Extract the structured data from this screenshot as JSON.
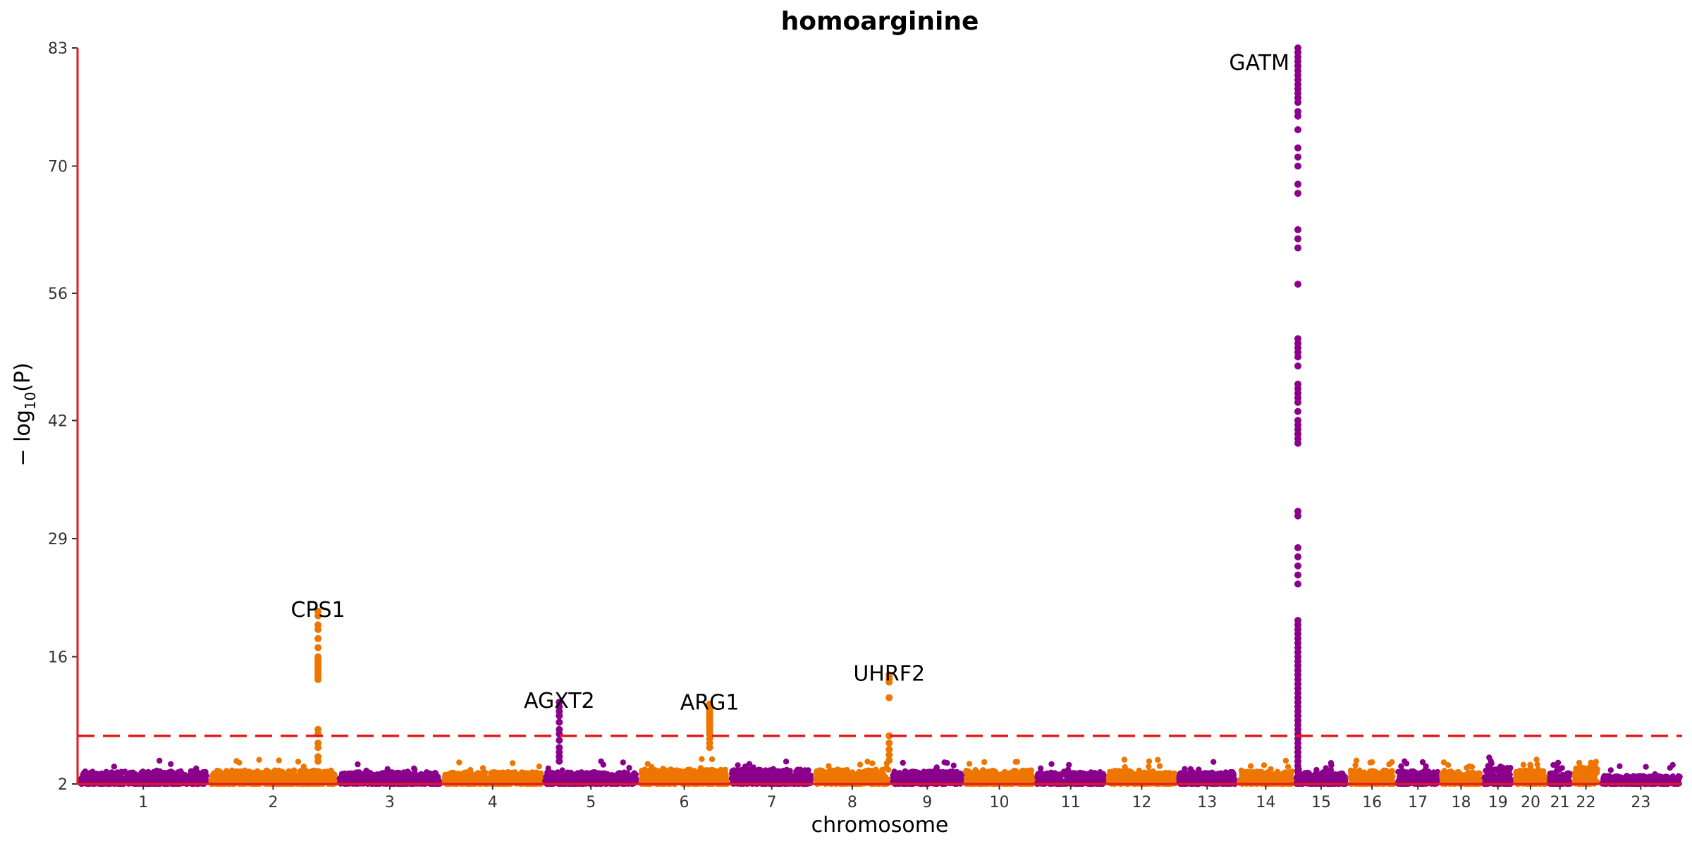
{
  "chart_data": {
    "type": "scatter",
    "subtype": "manhattan",
    "title": "homoarginine",
    "xlabel": "chromosome",
    "ylabel_prefix": "− log",
    "ylabel_sub": "10",
    "ylabel_suffix": "(P)",
    "ylim": [
      2,
      83
    ],
    "yticks": [
      "2",
      "16",
      "29",
      "42",
      "56",
      "70",
      "83"
    ],
    "ytick_values": [
      2,
      16,
      29,
      42,
      56,
      70,
      83
    ],
    "significance_threshold": 7.3,
    "colors": {
      "odd": "#8B008B",
      "even": "#EE7600",
      "axis": "#E31A1C",
      "threshold": "#E31A1C"
    },
    "chromosomes": [
      {
        "label": "1",
        "size": 248,
        "baseline": [
          2.0,
          3.4
        ]
      },
      {
        "label": "2",
        "size": 242,
        "baseline": [
          2.0,
          3.5
        ]
      },
      {
        "label": "3",
        "size": 198,
        "baseline": [
          2.0,
          3.3
        ]
      },
      {
        "label": "4",
        "size": 190,
        "baseline": [
          2.0,
          3.3
        ]
      },
      {
        "label": "5",
        "size": 181,
        "baseline": [
          2.0,
          3.3
        ]
      },
      {
        "label": "6",
        "size": 171,
        "baseline": [
          2.0,
          3.6
        ]
      },
      {
        "label": "7",
        "size": 159,
        "baseline": [
          2.0,
          3.6
        ]
      },
      {
        "label": "8",
        "size": 145,
        "baseline": [
          2.0,
          3.6
        ]
      },
      {
        "label": "9",
        "size": 138,
        "baseline": [
          2.0,
          3.4
        ]
      },
      {
        "label": "10",
        "size": 134,
        "baseline": [
          2.0,
          3.5
        ]
      },
      {
        "label": "11",
        "size": 135,
        "baseline": [
          2.0,
          3.3
        ]
      },
      {
        "label": "12",
        "size": 133,
        "baseline": [
          2.0,
          3.5
        ]
      },
      {
        "label": "13",
        "size": 114,
        "baseline": [
          2.0,
          3.3
        ]
      },
      {
        "label": "14",
        "size": 107,
        "baseline": [
          2.0,
          3.4
        ]
      },
      {
        "label": "15",
        "size": 102,
        "baseline": [
          2.0,
          3.3
        ]
      },
      {
        "label": "16",
        "size": 90,
        "baseline": [
          2.0,
          3.5
        ]
      },
      {
        "label": "17",
        "size": 83,
        "baseline": [
          2.0,
          3.4
        ]
      },
      {
        "label": "18",
        "size": 80,
        "baseline": [
          2.0,
          3.4
        ]
      },
      {
        "label": "19",
        "size": 59,
        "baseline": [
          2.0,
          3.8
        ]
      },
      {
        "label": "20",
        "size": 64,
        "baseline": [
          2.0,
          3.5
        ]
      },
      {
        "label": "21",
        "size": 47,
        "baseline": [
          2.0,
          3.2
        ]
      },
      {
        "label": "22",
        "size": 51,
        "baseline": [
          2.0,
          3.8
        ]
      },
      {
        "label": "23",
        "size": 156,
        "baseline": [
          2.0,
          2.9
        ]
      }
    ],
    "peaks": [
      {
        "gene": "CPS1",
        "chromosome": "2",
        "position": 0.85,
        "values": [
          21,
          20.5,
          19.5,
          19,
          18,
          17,
          16,
          15.8,
          15.5,
          15.2,
          15,
          14.8,
          14.5,
          14.2,
          13.8,
          13.5,
          8,
          7.5,
          6.5,
          6,
          5,
          4.5
        ]
      },
      {
        "gene": "AGXT2",
        "chromosome": "5",
        "position": 0.17,
        "values": [
          11,
          10.5,
          10,
          9.5,
          8.8,
          8,
          7.5,
          6.8,
          6,
          5.5,
          5,
          4.5
        ]
      },
      {
        "gene": "ARG1",
        "chromosome": "6",
        "position": 0.78,
        "values": [
          10.8,
          10.6,
          10.4,
          10.2,
          10,
          9.8,
          9.6,
          9.4,
          9.2,
          9,
          8.8,
          8.6,
          8.4,
          8.2,
          8,
          7.8,
          7.5,
          7,
          6.5,
          6
        ]
      },
      {
        "gene": "UHRF2",
        "chromosome": "8",
        "position": 0.98,
        "values": [
          14,
          13.8,
          13.5,
          13.2,
          11.5,
          7.3,
          6.5,
          5.8,
          5.2,
          4.6
        ]
      },
      {
        "gene": "GATM",
        "chromosome": "15",
        "position": 0.07,
        "values": [
          83,
          82.5,
          82,
          81.5,
          81,
          80.5,
          80,
          79.5,
          79,
          78.5,
          78,
          77.5,
          77,
          76,
          75.5,
          74,
          72,
          71,
          70,
          68,
          67,
          63,
          62,
          61,
          57,
          51,
          50.5,
          50,
          49.5,
          49,
          48,
          46,
          45.5,
          45,
          44.5,
          44,
          43,
          42,
          41.5,
          41,
          40.5,
          40,
          39.5,
          32,
          31.5,
          28,
          27,
          26,
          25,
          24,
          20,
          19.5,
          19,
          18.5,
          18,
          17.5,
          17,
          16.5,
          16,
          15.5,
          15,
          14.5,
          14,
          13.5,
          13,
          12.5,
          12,
          11.5,
          11,
          10.5,
          10,
          9.5,
          9,
          8.5,
          8,
          7.5,
          7,
          6.5,
          6,
          5.5,
          5,
          4.5,
          4,
          3.5
        ]
      }
    ]
  }
}
